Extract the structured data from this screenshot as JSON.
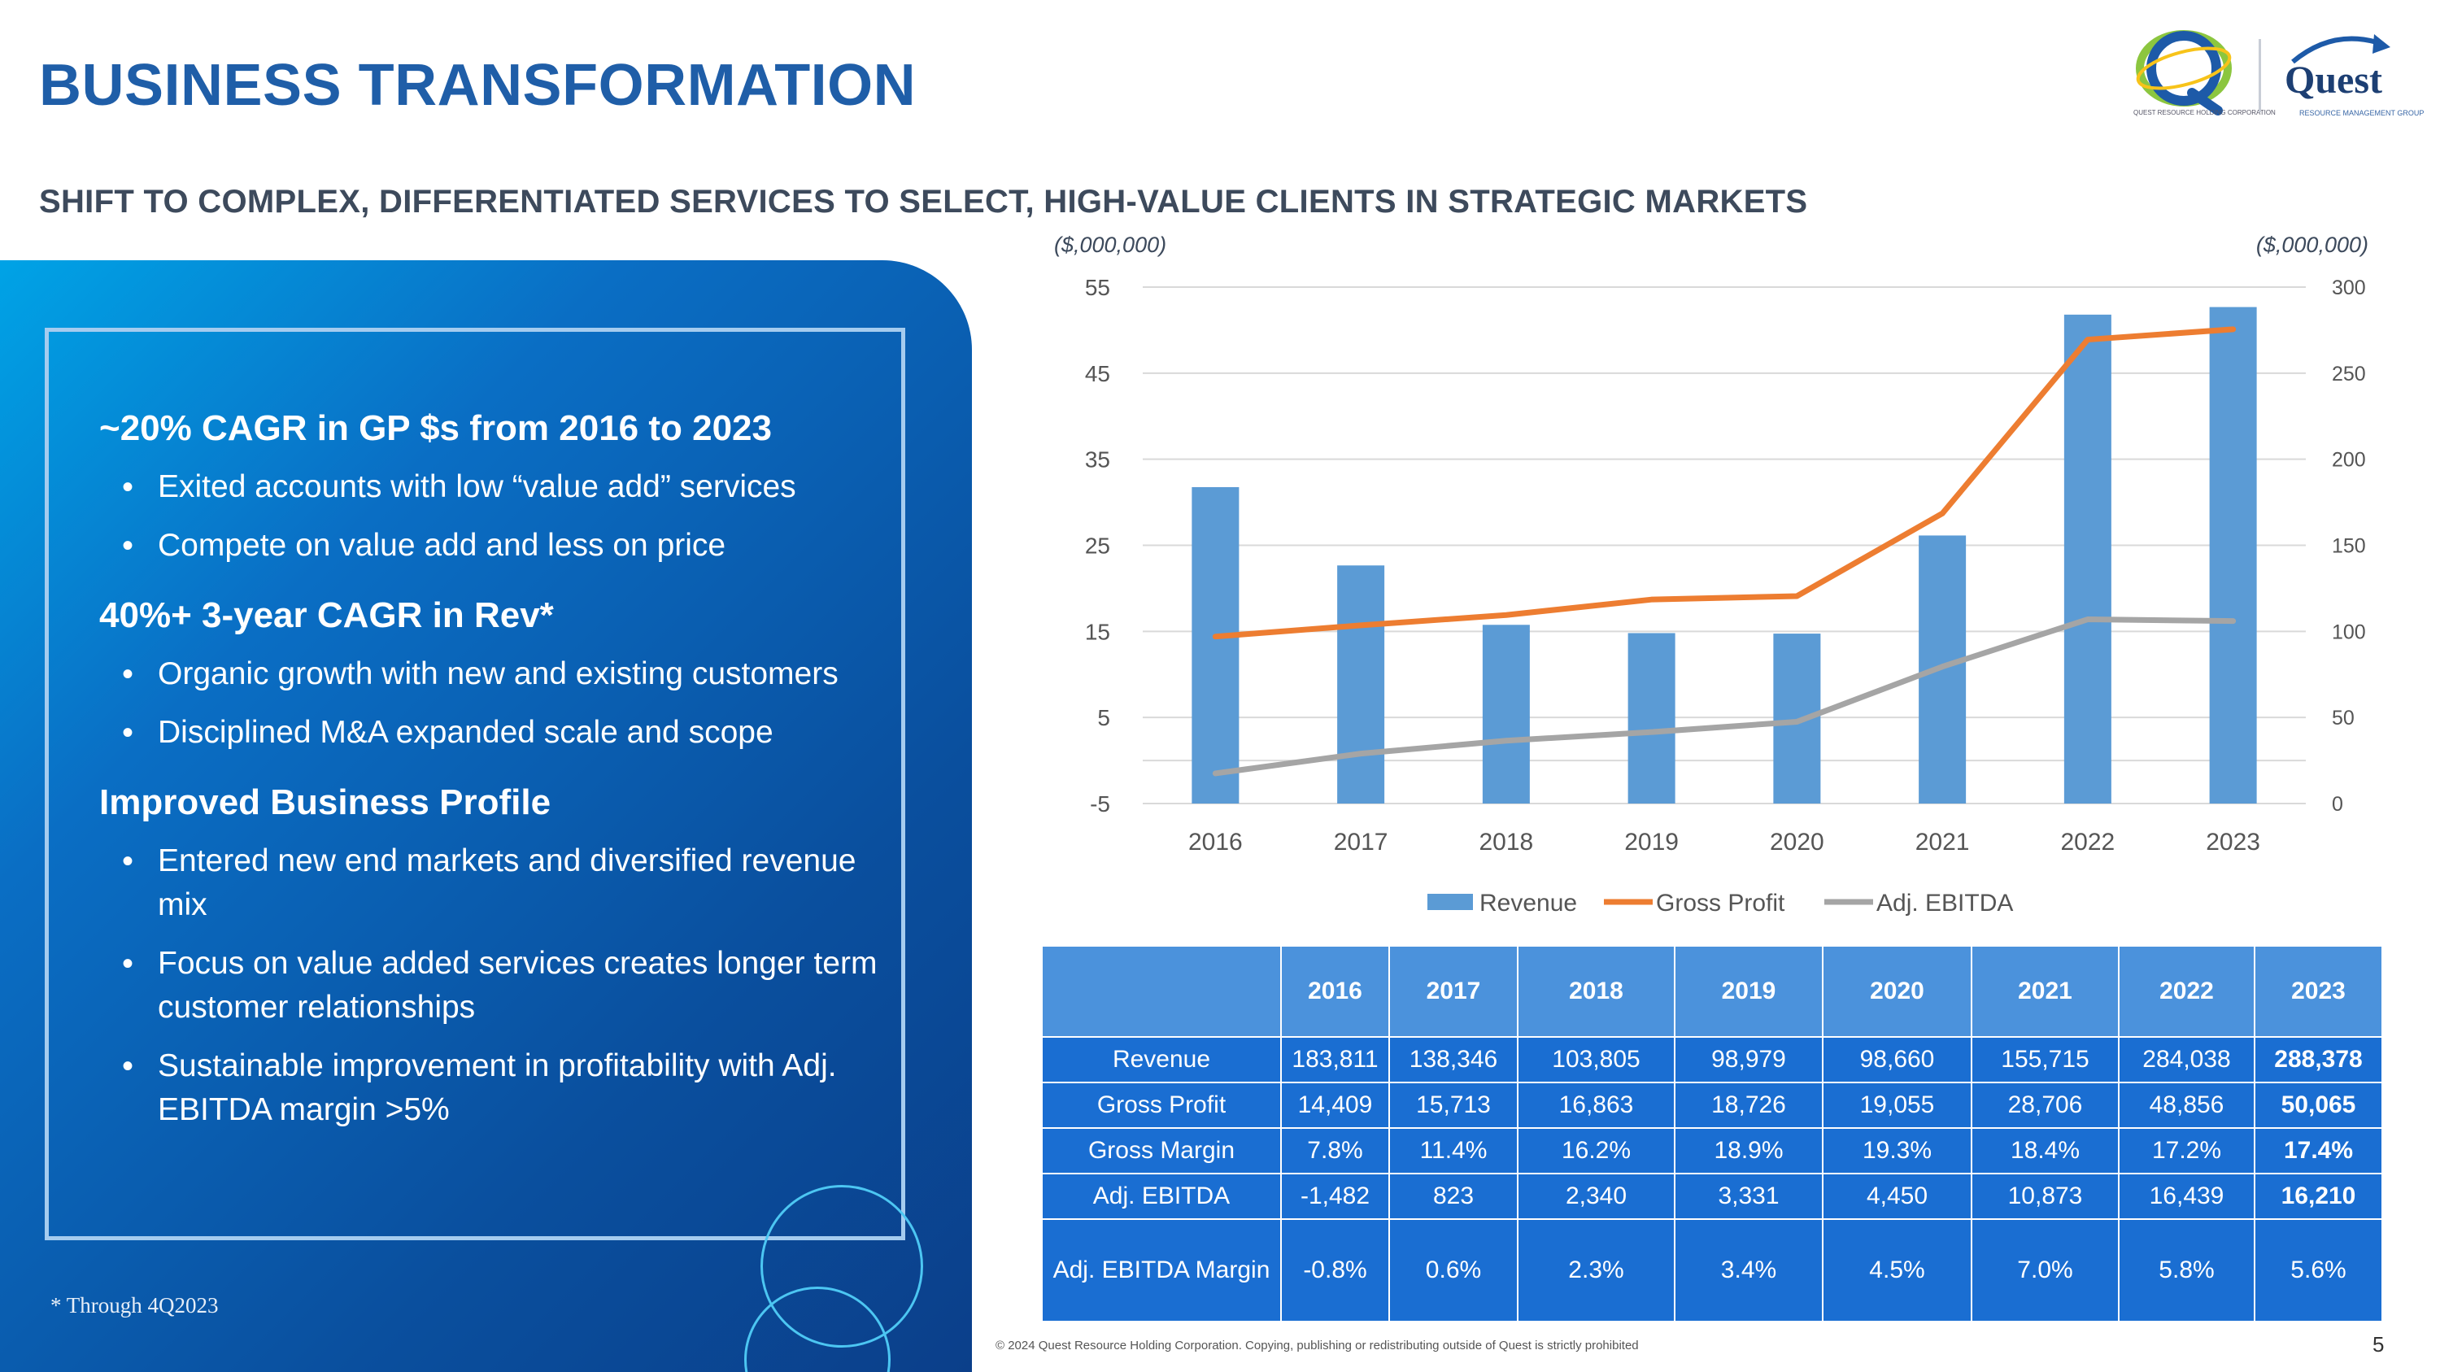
{
  "slide": {
    "title": "BUSINESS TRANSFORMATION",
    "subtitle": "SHIFT TO COMPLEX, DIFFERENTIATED SERVICES TO SELECT, HIGH-VALUE CLIENTS IN STRATEGIC MARKETS",
    "page_number": "5",
    "copyright": "© 2024 Quest Resource Holding Corporation.  Copying, publishing or redistributing outside of Quest is strictly prohibited",
    "footnote": "* Through 4Q2023"
  },
  "logos": {
    "holding_caption": "QUEST RESOURCE HOLDING CORPORATION",
    "brand_name": "Quest",
    "group_caption": "RESOURCE MANAGEMENT GROUP"
  },
  "panel": {
    "sections": [
      {
        "heading": "~20% CAGR in GP $s from 2016 to 2023",
        "bullets": [
          "Exited accounts with low “value add” services",
          "Compete on value add and less on price"
        ]
      },
      {
        "heading": "40%+ 3-year CAGR in Rev*",
        "bullets": [
          "Organic growth with new and existing customers",
          "Disciplined M&A expanded scale and scope"
        ]
      },
      {
        "heading": "Improved Business Profile",
        "bullets": [
          "Entered new end markets and diversified revenue mix",
          "Focus on value added services creates longer term customer relationships",
          "Sustainable improvement in profitability with Adj. EBITDA margin >5%"
        ]
      }
    ]
  },
  "chart_data": {
    "type": "bar",
    "title": "",
    "categories": [
      "2016",
      "2017",
      "2018",
      "2019",
      "2020",
      "2021",
      "2022",
      "2023"
    ],
    "left_axis": {
      "label": "($,000,000)",
      "range": [
        -5,
        55
      ],
      "ticks": [
        55,
        45,
        35,
        25,
        15,
        5,
        -5
      ]
    },
    "right_axis": {
      "label": "($,000,000)",
      "range": [
        0,
        300
      ],
      "ticks": [
        300,
        250,
        200,
        150,
        100,
        50,
        0
      ]
    },
    "series": [
      {
        "name": "Revenue",
        "type": "bar",
        "axis": "right",
        "color": "#5b9bd5",
        "values": [
          183.8,
          138.3,
          103.8,
          99.0,
          98.7,
          155.7,
          284.0,
          288.4
        ]
      },
      {
        "name": "Gross Profit",
        "type": "line",
        "axis": "left",
        "color": "#ed7d31",
        "values": [
          14.4,
          15.7,
          16.9,
          18.7,
          19.1,
          28.7,
          48.9,
          50.1
        ]
      },
      {
        "name": "Adj. EBITDA",
        "type": "line",
        "axis": "left",
        "color": "#a5a5a5",
        "values": [
          -1.5,
          0.8,
          2.3,
          3.3,
          4.5,
          10.9,
          16.4,
          16.2
        ]
      }
    ],
    "legend_position": "bottom",
    "grid": true
  },
  "table": {
    "headers": [
      "",
      "2016",
      "2017",
      "2018",
      "2019",
      "2020",
      "2021",
      "2022",
      "2023"
    ],
    "rows": [
      {
        "label": "Revenue",
        "values": [
          "183,811",
          "138,346",
          "103,805",
          "98,979",
          "98,660",
          "155,715",
          "284,038",
          "288,378"
        ]
      },
      {
        "label": "Gross Profit",
        "values": [
          "14,409",
          "15,713",
          "16,863",
          "18,726",
          "19,055",
          "28,706",
          "48,856",
          "50,065"
        ]
      },
      {
        "label": "Gross Margin",
        "values": [
          "7.8%",
          "11.4%",
          "16.2%",
          "18.9%",
          "19.3%",
          "18.4%",
          "17.2%",
          "17.4%"
        ]
      },
      {
        "label": "Adj. EBITDA",
        "values": [
          "-1,482",
          "823",
          "2,340",
          "3,331",
          "4,450",
          "10,873",
          "16,439",
          "16,210"
        ]
      },
      {
        "label": "Adj. EBITDA Margin",
        "values": [
          "-0.8%",
          "0.6%",
          "2.3%",
          "3.4%",
          "4.5%",
          "7.0%",
          "5.8%",
          "5.6%"
        ]
      }
    ]
  }
}
